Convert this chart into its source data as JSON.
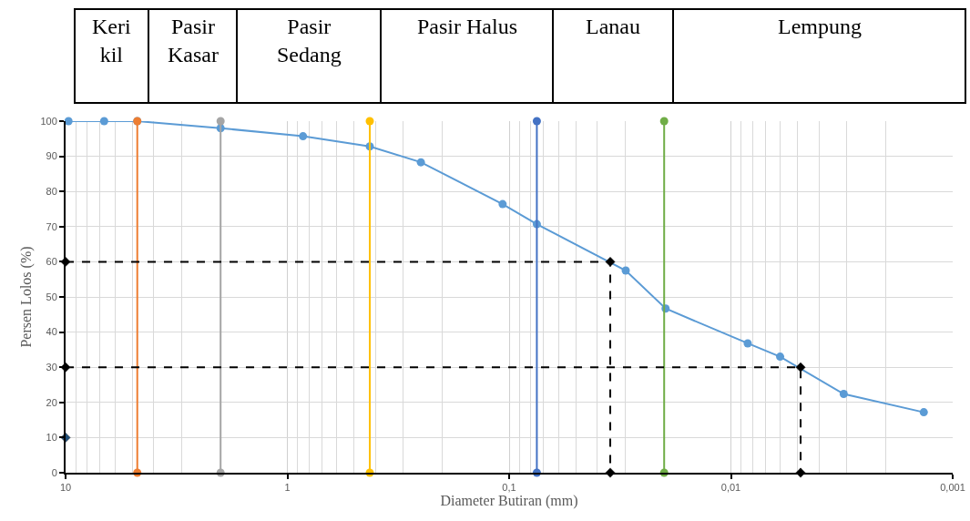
{
  "chart_data": {
    "type": "line",
    "xlabel": "Diameter Butiran (mm)",
    "ylabel": "Persen Lolos (%)",
    "log": "x",
    "grid": true,
    "xlim": [
      10,
      0.001
    ],
    "xticks": [
      10,
      1,
      {
        "value": 0.1,
        "label": "0,1"
      },
      {
        "value": 0.01,
        "label": "0,01"
      },
      {
        "value": 0.001,
        "label": "0,001"
      }
    ],
    "ylim": [
      0,
      100
    ],
    "yticks": [
      0,
      10,
      20,
      30,
      40,
      50,
      60,
      70,
      80,
      90,
      100
    ],
    "annotations": [
      "Keri\nkil",
      "Pasir\nKasar",
      "Pasir\nSedang",
      "Pasir Halus",
      "Lanau",
      "Lempung"
    ],
    "series": [
      {
        "color": "#5b9bd5",
        "marker": "circle",
        "line_style": "solid",
        "x": [
          9.7,
          6.7,
          4.75,
          2.0,
          0.85,
          0.425,
          0.25,
          0.107,
          0.075,
          0.0298,
          0.0197,
          0.0084,
          0.006,
          0.0031,
          0.00135
        ],
        "values": [
          100,
          100,
          100,
          98,
          95.7,
          92.8,
          88.3,
          76.4,
          70.7,
          57.5,
          46.7,
          36.8,
          33,
          22.4,
          17.2
        ]
      },
      {
        "color": "#ed7d31",
        "marker": "circle",
        "line_style": "solid",
        "x": [
          4.75,
          4.75
        ],
        "values": [
          0,
          100
        ]
      },
      {
        "color": "#a5a5a5",
        "marker": "circle",
        "line_style": "solid",
        "x": [
          2.0,
          2.0
        ],
        "values": [
          0,
          100
        ]
      },
      {
        "color": "#ffc000",
        "marker": "circle",
        "line_style": "solid",
        "x": [
          0.425,
          0.425
        ],
        "values": [
          0,
          100
        ]
      },
      {
        "color": "#4472c4",
        "marker": "circle",
        "line_style": "solid",
        "x": [
          0.075,
          0.075
        ],
        "values": [
          0,
          100
        ]
      },
      {
        "color": "#70ad47",
        "marker": "circle",
        "line_style": "solid",
        "x": [
          0.02,
          0.02
        ],
        "values": [
          0,
          100
        ]
      },
      {
        "color": "#000000",
        "marker": "diamond",
        "line_style": "dashed",
        "x": [
          10,
          0.035,
          0.035
        ],
        "values": [
          60,
          60,
          0
        ]
      },
      {
        "color": "#000000",
        "marker": "diamond",
        "line_style": "dashed",
        "x": [
          10,
          0.00485,
          0.00485
        ],
        "values": [
          30,
          30,
          0
        ]
      },
      {
        "type": "scatter",
        "color": "#1f4e79",
        "marker": "diamond",
        "x": [
          10
        ],
        "values": [
          10
        ]
      }
    ]
  }
}
